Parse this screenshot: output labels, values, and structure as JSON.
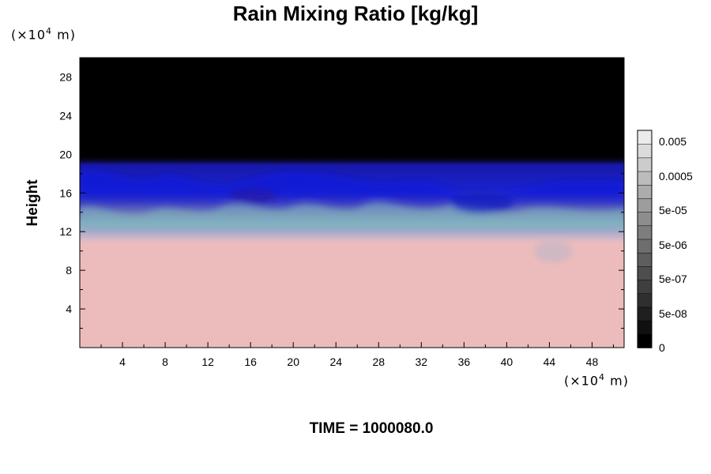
{
  "title": "Rain Mixing Ratio [kg/kg]",
  "y_unit": {
    "prefix": "(×10",
    "exp": "4",
    "suffix": " m)"
  },
  "x_unit": {
    "prefix": "(×10",
    "exp": "4",
    "suffix": " m)"
  },
  "time_label": "TIME = 1000080.0",
  "chart_data": {
    "type": "heatmap",
    "title": "Rain Mixing Ratio [kg/kg]",
    "ylabel": "Height",
    "xlabel": "",
    "x_unit": "×10^4 m",
    "y_unit": "×10^4 m",
    "xlim": [
      0,
      51
    ],
    "ylim": [
      0,
      30
    ],
    "x_ticks": [
      4,
      8,
      12,
      16,
      20,
      24,
      28,
      32,
      36,
      40,
      44,
      48
    ],
    "y_ticks": [
      4,
      8,
      12,
      16,
      20,
      24,
      28
    ],
    "colorbar": {
      "labels": [
        "0.005",
        "0.0005",
        "5e-05",
        "5e-06",
        "5e-07",
        "5e-08",
        "0"
      ],
      "levels": 16
    },
    "bands": [
      {
        "from": 0,
        "to": 11,
        "color": "#ecbcbc",
        "desc": "pink base"
      },
      {
        "from": 11,
        "to": 12.5,
        "color": "#c8b6c6",
        "desc": "mauve transition"
      },
      {
        "from": 12.5,
        "to": 15,
        "color": "#7fa2b8",
        "desc": "teal/purple turbulent layer"
      },
      {
        "from": 15,
        "to": 19.5,
        "color": "#1a22c8",
        "desc": "blue layer"
      },
      {
        "from": 19.5,
        "to": 30,
        "color": "#000000",
        "desc": "black top"
      }
    ]
  }
}
